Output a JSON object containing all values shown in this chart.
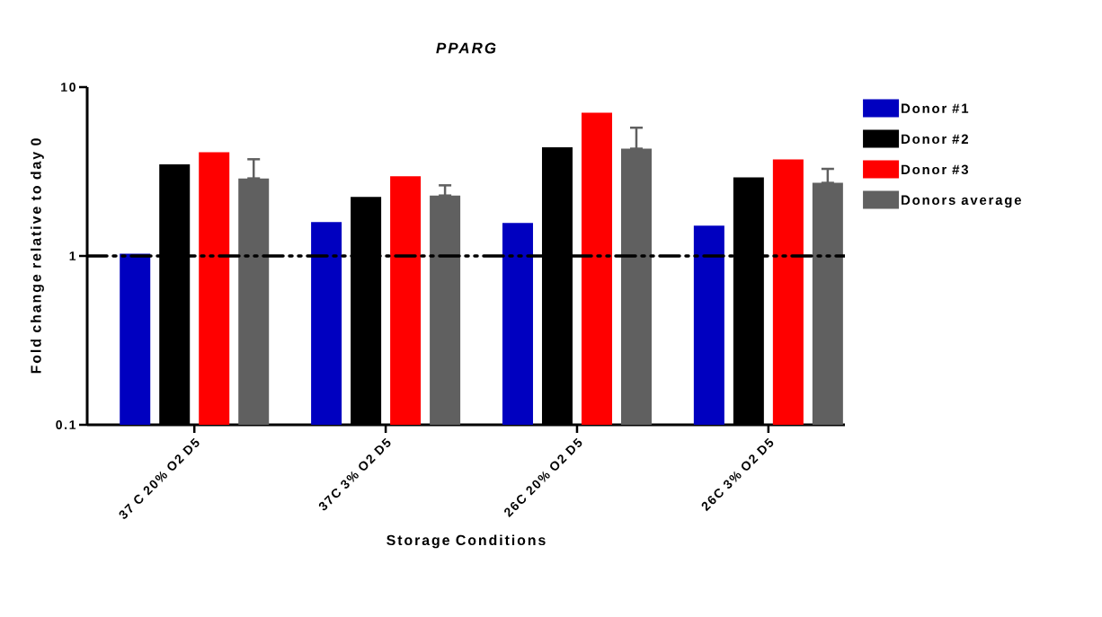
{
  "chart_data": {
    "type": "bar",
    "title": "PPARG",
    "xlabel": "Storage Conditions",
    "ylabel": "Fold change relative to day 0",
    "categories": [
      "37 C 20% O2 D5",
      "37C  3% O2 D5",
      "26C 20% O2 D5",
      "26C 3% O2 D5"
    ],
    "series": [
      {
        "name": "Donor #1",
        "color": "#0000c0",
        "values": [
          1.03,
          1.59,
          1.57,
          1.51
        ]
      },
      {
        "name": "Donor #2",
        "color": "#000000",
        "values": [
          3.49,
          2.24,
          4.4,
          2.92
        ]
      },
      {
        "name": "Donor #3",
        "color": "#ff0000",
        "values": [
          4.11,
          2.97,
          7.06,
          3.73
        ]
      },
      {
        "name": "Donors average",
        "color": "#606060",
        "values": [
          2.88,
          2.28,
          4.32,
          2.71
        ],
        "errors": [
          [
            2.88,
            3.74
          ],
          [
            2.28,
            2.62
          ],
          [
            4.32,
            5.75
          ],
          [
            2.71,
            3.28
          ]
        ]
      }
    ],
    "log": "y",
    "ylim": [
      0.1,
      10
    ],
    "yticks": [
      0.1,
      1,
      10
    ],
    "ref_lines": [
      {
        "axis": "y",
        "value": 1,
        "color": "#000000",
        "line_style": "dashed"
      }
    ],
    "legend": "right"
  }
}
